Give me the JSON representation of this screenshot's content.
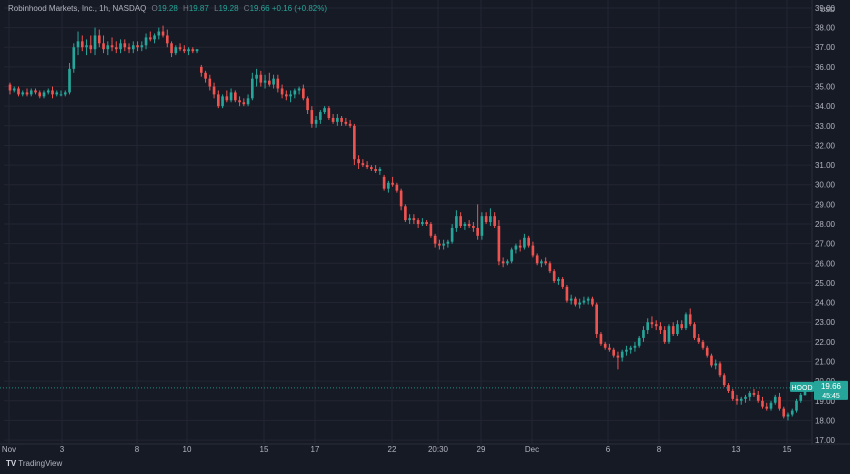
{
  "legend": {
    "symbol": "Robinhood Markets, Inc., 1h, NASDAQ",
    "o_label": "O",
    "o": "19.28",
    "h_label": "H",
    "h": "19.87",
    "l_label": "L",
    "l": "19.28",
    "c_label": "C",
    "c": "19.66",
    "change": "+0.16 (+0.82%)"
  },
  "footer": {
    "brand": "TradingView"
  },
  "currency": "USD",
  "price_tag": {
    "ticker": "HOOD",
    "price": "19.66",
    "countdown": "45:45"
  },
  "colors": {
    "background": "#161a25",
    "up": "#26a69a",
    "down": "#ef5350",
    "grid": "#232632",
    "text": "#b2b5be"
  },
  "chart_data": {
    "type": "candlestick",
    "title": "Robinhood Markets, Inc., 1h, NASDAQ",
    "ylim": [
      16.8,
      39.1
    ],
    "y_axis_position": "right",
    "y_ticks": [
      "17.00",
      "18.00",
      "19.00",
      "20.00",
      "21.00",
      "22.00",
      "23.00",
      "24.00",
      "25.00",
      "26.00",
      "27.00",
      "28.00",
      "29.00",
      "30.00",
      "31.00",
      "32.00",
      "33.00",
      "34.00",
      "35.00",
      "36.00",
      "37.00",
      "38.00",
      "39.00"
    ],
    "x_ticks": [
      "Nov",
      "3",
      "8",
      "10",
      "15",
      "17",
      "22",
      "20:30",
      "29",
      "Dec",
      "6",
      "8",
      "13",
      "15"
    ],
    "last_price": 19.66,
    "grid": true,
    "series": [
      {
        "values": [
          [
            35.1,
            35.2,
            34.6,
            34.8
          ],
          [
            34.8,
            35.0,
            34.7,
            34.9
          ],
          [
            34.9,
            35.0,
            34.5,
            34.6
          ],
          [
            34.6,
            34.8,
            34.5,
            34.7
          ],
          [
            34.7,
            34.9,
            34.5,
            34.6
          ],
          [
            34.6,
            34.9,
            34.5,
            34.8
          ],
          [
            34.8,
            34.9,
            34.6,
            34.7
          ],
          [
            34.7,
            34.8,
            34.4,
            34.5
          ],
          [
            34.5,
            34.8,
            34.4,
            34.7
          ],
          [
            34.7,
            34.9,
            34.6,
            34.8
          ],
          [
            34.8,
            35.0,
            34.4,
            34.6
          ],
          [
            34.6,
            34.8,
            34.5,
            34.7
          ],
          [
            34.6,
            34.8,
            34.5,
            34.6
          ],
          [
            34.6,
            34.8,
            34.5,
            34.7
          ],
          [
            34.7,
            36.2,
            34.6,
            35.9
          ],
          [
            35.9,
            37.2,
            35.7,
            37.0
          ],
          [
            37.0,
            37.8,
            36.6,
            37.3
          ],
          [
            37.3,
            37.6,
            36.8,
            37.0
          ],
          [
            37.0,
            37.4,
            36.6,
            37.1
          ],
          [
            37.1,
            37.6,
            36.7,
            36.9
          ],
          [
            36.9,
            38.0,
            36.6,
            37.6
          ],
          [
            37.6,
            37.9,
            37.0,
            37.2
          ],
          [
            37.2,
            37.6,
            36.7,
            36.9
          ],
          [
            36.9,
            37.3,
            36.6,
            37.1
          ],
          [
            37.1,
            37.5,
            36.8,
            37.0
          ],
          [
            37.0,
            37.3,
            36.7,
            36.9
          ],
          [
            36.9,
            37.4,
            36.7,
            37.2
          ],
          [
            37.2,
            37.4,
            36.8,
            37.0
          ],
          [
            37.0,
            37.2,
            36.7,
            36.9
          ],
          [
            36.9,
            37.3,
            36.7,
            37.1
          ],
          [
            37.1,
            37.3,
            36.8,
            37.0
          ],
          [
            37.0,
            37.3,
            36.8,
            37.1
          ],
          [
            37.1,
            37.7,
            36.9,
            37.5
          ],
          [
            37.5,
            37.8,
            37.3,
            37.4
          ],
          [
            37.4,
            37.7,
            37.2,
            37.6
          ],
          [
            37.6,
            38.0,
            37.4,
            37.8
          ],
          [
            37.8,
            38.1,
            37.5,
            37.6
          ],
          [
            37.6,
            37.9,
            37.0,
            37.2
          ],
          [
            37.2,
            37.3,
            36.5,
            36.7
          ],
          [
            36.7,
            37.1,
            36.6,
            37.0
          ],
          [
            37.0,
            37.2,
            36.8,
            36.9
          ],
          [
            36.9,
            37.1,
            36.7,
            36.8
          ],
          [
            36.8,
            37.0,
            36.6,
            36.9
          ],
          [
            36.9,
            37.0,
            36.7,
            36.8
          ],
          [
            36.8,
            36.9,
            36.7,
            36.9
          ],
          [
            36.0,
            36.1,
            35.5,
            35.7
          ],
          [
            35.7,
            35.8,
            35.2,
            35.4
          ],
          [
            35.4,
            35.6,
            34.8,
            35.0
          ],
          [
            35.0,
            35.2,
            34.4,
            34.6
          ],
          [
            34.6,
            34.8,
            33.9,
            34.0
          ],
          [
            34.0,
            34.6,
            33.9,
            34.5
          ],
          [
            34.5,
            34.8,
            34.2,
            34.3
          ],
          [
            34.3,
            34.9,
            34.2,
            34.7
          ],
          [
            34.7,
            34.8,
            34.2,
            34.3
          ],
          [
            34.3,
            34.5,
            34.0,
            34.2
          ],
          [
            34.2,
            34.4,
            34.0,
            34.1
          ],
          [
            34.1,
            34.6,
            34.0,
            34.4
          ],
          [
            34.4,
            35.7,
            34.3,
            35.4
          ],
          [
            35.4,
            35.9,
            35.0,
            35.6
          ],
          [
            35.6,
            35.8,
            35.0,
            35.2
          ],
          [
            35.2,
            35.6,
            34.9,
            35.3
          ],
          [
            35.3,
            35.7,
            35.0,
            35.1
          ],
          [
            35.1,
            35.6,
            34.9,
            35.4
          ],
          [
            35.4,
            35.6,
            34.7,
            34.9
          ],
          [
            34.9,
            35.1,
            34.4,
            34.6
          ],
          [
            34.6,
            34.8,
            34.3,
            34.5
          ],
          [
            34.5,
            34.8,
            34.2,
            34.6
          ],
          [
            34.6,
            34.9,
            34.4,
            34.8
          ],
          [
            34.8,
            35.0,
            34.6,
            34.9
          ],
          [
            34.9,
            35.1,
            34.3,
            34.4
          ],
          [
            34.4,
            34.5,
            33.6,
            33.8
          ],
          [
            33.8,
            34.0,
            32.9,
            33.1
          ],
          [
            33.1,
            33.5,
            32.9,
            33.3
          ],
          [
            33.3,
            33.8,
            33.1,
            33.7
          ],
          [
            33.7,
            34.0,
            33.6,
            33.9
          ],
          [
            33.9,
            34.0,
            33.3,
            33.4
          ],
          [
            33.4,
            33.6,
            33.1,
            33.2
          ],
          [
            33.2,
            33.6,
            33.0,
            33.4
          ],
          [
            33.4,
            33.5,
            33.0,
            33.2
          ],
          [
            33.2,
            33.4,
            33.0,
            33.1
          ],
          [
            33.1,
            33.3,
            32.9,
            33.0
          ],
          [
            33.0,
            33.1,
            31.0,
            31.3
          ],
          [
            31.3,
            31.5,
            30.8,
            31.1
          ],
          [
            31.1,
            31.3,
            30.9,
            31.0
          ],
          [
            31.0,
            31.2,
            30.8,
            30.9
          ],
          [
            30.9,
            31.0,
            30.7,
            30.8
          ],
          [
            30.8,
            31.0,
            30.6,
            30.7
          ],
          [
            30.7,
            30.9,
            30.5,
            30.8
          ],
          [
            30.4,
            30.5,
            29.7,
            29.8
          ],
          [
            29.8,
            30.2,
            29.6,
            30.1
          ],
          [
            30.1,
            30.4,
            29.9,
            30.0
          ],
          [
            30.0,
            30.1,
            29.6,
            29.7
          ],
          [
            29.7,
            29.8,
            28.7,
            28.9
          ],
          [
            28.9,
            29.0,
            28.1,
            28.2
          ],
          [
            28.2,
            28.5,
            28.0,
            28.3
          ],
          [
            28.3,
            28.5,
            28.0,
            28.2
          ],
          [
            28.2,
            28.3,
            27.8,
            28.0
          ],
          [
            28.0,
            28.3,
            27.9,
            28.1
          ],
          [
            28.1,
            28.2,
            27.9,
            28.0
          ],
          [
            28.0,
            28.1,
            27.3,
            27.4
          ],
          [
            27.4,
            27.5,
            26.8,
            27.0
          ],
          [
            27.0,
            27.2,
            26.7,
            26.9
          ],
          [
            26.9,
            27.2,
            26.7,
            27.0
          ],
          [
            27.0,
            27.2,
            26.8,
            27.1
          ],
          [
            27.1,
            28.0,
            27.0,
            27.8
          ],
          [
            27.8,
            28.7,
            27.6,
            28.4
          ],
          [
            28.4,
            28.6,
            27.8,
            27.9
          ],
          [
            27.9,
            28.1,
            27.7,
            28.0
          ],
          [
            28.0,
            28.2,
            27.8,
            27.9
          ],
          [
            27.9,
            28.1,
            27.6,
            27.8
          ],
          [
            27.8,
            29.0,
            27.2,
            27.4
          ],
          [
            27.4,
            28.6,
            27.2,
            28.4
          ],
          [
            28.4,
            28.6,
            28.0,
            28.1
          ],
          [
            28.1,
            28.8,
            27.9,
            28.4
          ],
          [
            28.4,
            28.6,
            27.8,
            27.9
          ],
          [
            27.9,
            28.2,
            25.9,
            26.1
          ],
          [
            26.1,
            26.3,
            25.8,
            26.0
          ],
          [
            26.0,
            26.2,
            25.9,
            26.1
          ],
          [
            26.1,
            26.8,
            26.0,
            26.7
          ],
          [
            26.7,
            27.0,
            26.5,
            26.9
          ],
          [
            26.9,
            27.2,
            26.6,
            26.8
          ],
          [
            26.8,
            27.5,
            26.7,
            27.3
          ],
          [
            27.3,
            27.4,
            26.8,
            26.9
          ],
          [
            26.9,
            27.1,
            26.3,
            26.4
          ],
          [
            26.4,
            26.5,
            25.9,
            26.0
          ],
          [
            26.0,
            26.2,
            25.8,
            26.1
          ],
          [
            26.1,
            26.3,
            25.9,
            26.0
          ],
          [
            26.0,
            26.1,
            25.5,
            25.6
          ],
          [
            25.6,
            25.7,
            25.0,
            25.1
          ],
          [
            25.1,
            25.3,
            24.9,
            25.2
          ],
          [
            25.2,
            25.3,
            24.7,
            24.8
          ],
          [
            24.8,
            24.9,
            24.0,
            24.1
          ],
          [
            24.1,
            24.4,
            23.9,
            24.2
          ],
          [
            24.2,
            24.3,
            23.8,
            23.9
          ],
          [
            23.9,
            24.2,
            23.7,
            24.0
          ],
          [
            24.0,
            24.3,
            23.9,
            24.1
          ],
          [
            24.1,
            24.3,
            23.9,
            24.2
          ],
          [
            24.2,
            24.3,
            23.8,
            23.9
          ],
          [
            23.9,
            24.0,
            22.2,
            22.4
          ],
          [
            22.4,
            22.5,
            21.8,
            21.9
          ],
          [
            21.9,
            22.0,
            21.6,
            21.7
          ],
          [
            21.7,
            21.9,
            21.5,
            21.6
          ],
          [
            21.6,
            21.7,
            21.2,
            21.3
          ],
          [
            21.3,
            21.5,
            20.6,
            21.2
          ],
          [
            21.2,
            21.6,
            21.0,
            21.5
          ],
          [
            21.5,
            21.8,
            21.3,
            21.6
          ],
          [
            21.6,
            21.8,
            21.4,
            21.7
          ],
          [
            21.7,
            22.0,
            21.5,
            21.8
          ],
          [
            21.8,
            22.3,
            21.7,
            22.2
          ],
          [
            22.2,
            22.8,
            22.0,
            22.6
          ],
          [
            22.6,
            23.2,
            22.4,
            23.0
          ],
          [
            23.0,
            23.3,
            22.7,
            22.9
          ],
          [
            22.9,
            23.1,
            22.6,
            22.8
          ],
          [
            22.8,
            23.0,
            22.4,
            22.6
          ],
          [
            22.6,
            22.8,
            21.9,
            22.0
          ],
          [
            22.0,
            22.9,
            21.9,
            22.8
          ],
          [
            22.8,
            23.0,
            22.3,
            22.4
          ],
          [
            22.4,
            23.1,
            22.3,
            22.9
          ],
          [
            22.9,
            23.1,
            22.6,
            22.7
          ],
          [
            22.7,
            23.5,
            22.6,
            23.4
          ],
          [
            23.4,
            23.7,
            22.8,
            22.9
          ],
          [
            22.9,
            23.0,
            22.1,
            22.2
          ],
          [
            22.2,
            22.4,
            21.9,
            22.0
          ],
          [
            22.0,
            22.1,
            21.6,
            21.7
          ],
          [
            21.7,
            21.8,
            21.2,
            21.3
          ],
          [
            21.3,
            21.4,
            20.7,
            20.8
          ],
          [
            20.8,
            21.1,
            20.6,
            20.9
          ],
          [
            20.9,
            21.0,
            20.2,
            20.3
          ],
          [
            20.3,
            20.4,
            19.7,
            19.8
          ],
          [
            19.8,
            19.9,
            19.4,
            19.5
          ],
          [
            19.5,
            19.6,
            19.0,
            19.1
          ],
          [
            19.1,
            19.3,
            18.8,
            19.0
          ],
          [
            19.0,
            19.2,
            18.8,
            19.1
          ],
          [
            19.1,
            19.3,
            18.9,
            19.2
          ],
          [
            19.2,
            19.5,
            19.0,
            19.4
          ],
          [
            19.4,
            19.6,
            19.2,
            19.3
          ],
          [
            19.3,
            19.5,
            18.9,
            19.0
          ],
          [
            19.0,
            19.2,
            18.6,
            18.7
          ],
          [
            18.7,
            18.9,
            18.5,
            18.6
          ],
          [
            18.6,
            19.0,
            18.5,
            18.9
          ],
          [
            18.9,
            19.3,
            18.8,
            19.2
          ],
          [
            19.2,
            19.4,
            18.5,
            18.6
          ],
          [
            18.6,
            18.7,
            18.1,
            18.2
          ],
          [
            18.2,
            18.4,
            18.0,
            18.3
          ],
          [
            18.3,
            18.6,
            18.2,
            18.5
          ],
          [
            18.5,
            19.1,
            18.4,
            19.0
          ],
          [
            19.0,
            19.4,
            18.9,
            19.3
          ],
          [
            19.28,
            19.87,
            19.28,
            19.66
          ]
        ]
      }
    ]
  }
}
